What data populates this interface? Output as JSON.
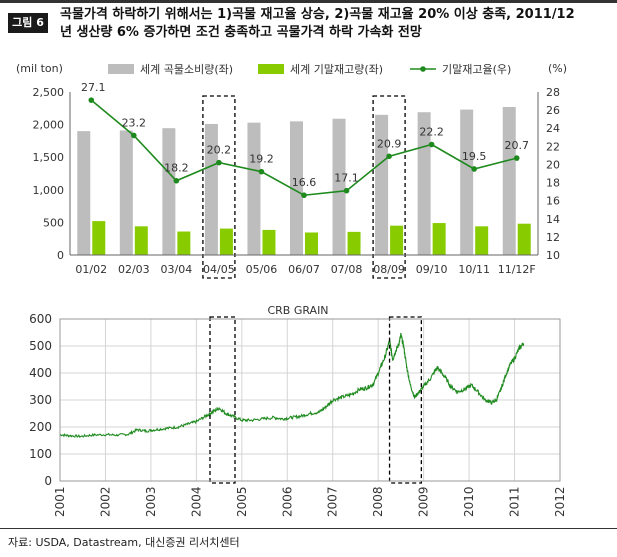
{
  "figure": {
    "badge": "그림 6",
    "title_line1": "곡물가격 하락하기 위해서는 1)곡물 재고율 상승, 2)곡물 재고율 20% 이상 충족, 2011/12",
    "title_line2": "년 생산량 6% 증가하면 조건 충족하고 곡물가격 하락 가속화 전망",
    "source": "자료: USDA, Datastream, 대신증권 리서치센터"
  },
  "colors": {
    "consumption_bar": "#bdbdbd",
    "stock_bar": "#88cc00",
    "stock_ratio_line": "#1e8a1e",
    "crb_line": "#1e8a1e",
    "highlight_box": "#000000"
  },
  "chart_data": [
    {
      "type": "bar",
      "title": "",
      "left_axis_unit": "(mil ton)",
      "right_axis_unit": "(%)",
      "categories": [
        "01/02",
        "02/03",
        "03/04",
        "04/05",
        "05/06",
        "06/07",
        "07/08",
        "08/09",
        "09/10",
        "10/11",
        "11/12F"
      ],
      "series": [
        {
          "name": "세계 곡물소비량(좌)",
          "type": "bar",
          "axis": "left",
          "values": [
            1900,
            1910,
            1945,
            2010,
            2030,
            2050,
            2090,
            2150,
            2190,
            2230,
            2270
          ]
        },
        {
          "name": "세계 기말재고량(좌)",
          "type": "bar",
          "axis": "left",
          "values": [
            520,
            440,
            360,
            405,
            385,
            345,
            355,
            450,
            490,
            440,
            480
          ]
        },
        {
          "name": "기말재고율(우)",
          "type": "line",
          "axis": "right",
          "values": [
            27.1,
            23.2,
            18.2,
            20.2,
            19.2,
            16.6,
            17.1,
            20.9,
            22.2,
            19.5,
            20.7
          ],
          "labels": [
            "27.1",
            "23.2",
            "18.2",
            "20.2",
            "19.2",
            "16.6",
            "17.1",
            "20.9",
            "22.2",
            "19.5",
            "20.7"
          ]
        }
      ],
      "left_ylim": [
        0,
        2500
      ],
      "left_ticks": [
        "0",
        "500",
        "1,000",
        "1,500",
        "2,000",
        "2,500"
      ],
      "right_ylim": [
        10,
        28
      ],
      "right_ticks": [
        "10",
        "12",
        "14",
        "16",
        "18",
        "20",
        "22",
        "24",
        "26",
        "28"
      ],
      "highlight_categories": [
        "04/05",
        "08/09"
      ],
      "legend_position": "top"
    },
    {
      "type": "line",
      "title": "CRB GRAIN",
      "x_start": 2001,
      "x_end": 2012,
      "x_ticks": [
        "2001",
        "2002",
        "2003",
        "2004",
        "2005",
        "2006",
        "2007",
        "2008",
        "2009",
        "2010",
        "2011",
        "2012"
      ],
      "ylim": [
        0,
        600
      ],
      "y_ticks": [
        "0",
        "100",
        "200",
        "300",
        "400",
        "500",
        "600"
      ],
      "grid": true,
      "highlight_ranges": [
        [
          2004.3,
          2004.85
        ],
        [
          2008.25,
          2008.95
        ]
      ],
      "series": [
        {
          "name": "",
          "x": [
            2001.0,
            2001.2,
            2001.45,
            2001.7,
            2002.0,
            2002.25,
            2002.5,
            2002.7,
            2002.9,
            2003.1,
            2003.35,
            2003.6,
            2003.8,
            2004.0,
            2004.2,
            2004.35,
            2004.5,
            2004.65,
            2004.8,
            2005.0,
            2005.2,
            2005.45,
            2005.7,
            2005.9,
            2006.1,
            2006.3,
            2006.5,
            2006.7,
            2006.85,
            2007.0,
            2007.2,
            2007.4,
            2007.6,
            2007.75,
            2007.9,
            2008.05,
            2008.15,
            2008.25,
            2008.32,
            2008.38,
            2008.45,
            2008.5,
            2008.56,
            2008.62,
            2008.7,
            2008.8,
            2008.9,
            2009.0,
            2009.15,
            2009.3,
            2009.45,
            2009.6,
            2009.75,
            2009.9,
            2010.05,
            2010.2,
            2010.35,
            2010.5,
            2010.6,
            2010.7,
            2010.8,
            2010.9,
            2011.0,
            2011.1,
            2011.2
          ],
          "values": [
            172,
            168,
            165,
            170,
            172,
            170,
            173,
            190,
            185,
            190,
            195,
            200,
            210,
            220,
            240,
            255,
            270,
            250,
            240,
            225,
            225,
            230,
            235,
            230,
            235,
            240,
            250,
            255,
            275,
            300,
            310,
            320,
            340,
            345,
            360,
            420,
            460,
            520,
            450,
            480,
            505,
            540,
            500,
            430,
            360,
            310,
            330,
            350,
            380,
            420,
            390,
            350,
            330,
            340,
            355,
            330,
            300,
            290,
            300,
            340,
            390,
            430,
            455,
            490,
            510
          ]
        }
      ]
    }
  ]
}
